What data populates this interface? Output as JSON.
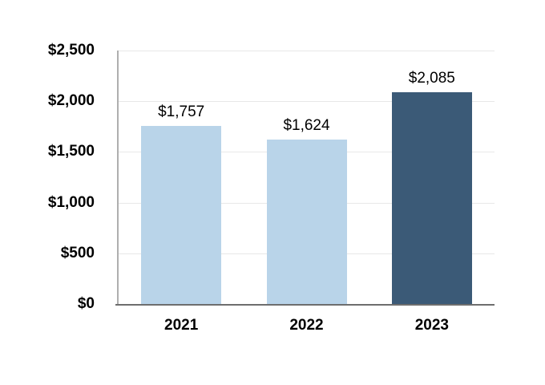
{
  "chart_data": {
    "type": "bar",
    "title": "",
    "xlabel": "",
    "ylabel": "",
    "categories": [
      "2021",
      "2022",
      "2023"
    ],
    "values": [
      1757,
      1624,
      2085
    ],
    "value_labels": [
      "$1,757",
      "$1,624",
      "$2,085"
    ],
    "bar_colors": [
      "#B9D4E9",
      "#B9D4E9",
      "#3B5A77"
    ],
    "ylim": [
      0,
      2500
    ],
    "ytick_step": 500,
    "ytick_labels": [
      "$0",
      "$500",
      "$1,000",
      "$1,500",
      "$2,000",
      "$2,500"
    ],
    "grid": true,
    "legend": false,
    "colors": {
      "gridline": "#E8E8E8",
      "y_axis_line": "#AFAFAF",
      "x_axis_line": "#6E6E6E",
      "text": "#000000",
      "background": "#FFFFFF"
    }
  }
}
